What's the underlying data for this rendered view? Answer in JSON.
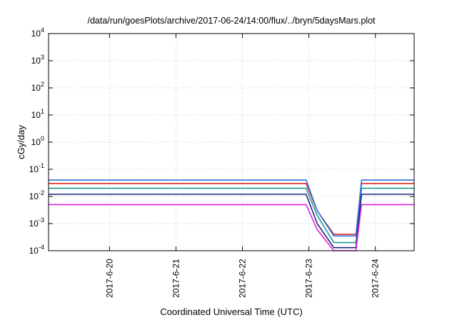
{
  "chart_data": {
    "type": "line",
    "title": "/data/run/goesPlots/archive/2017-06-24/14:00/flux/../bryn/5daysMars.plot",
    "xlabel": "Coordinated Universal Time (UTC)",
    "ylabel": "cGy/day",
    "y_scale": "log",
    "ylim": [
      0.0001,
      10000
    ],
    "xlim": [
      "2017-06-19T02:00",
      "2017-06-24T14:00"
    ],
    "grid": true,
    "legend": "none",
    "y_ticks": [
      {
        "value": 0.0001,
        "base": "10",
        "exp": "-4"
      },
      {
        "value": 0.001,
        "base": "10",
        "exp": "-3"
      },
      {
        "value": 0.01,
        "base": "10",
        "exp": "-2"
      },
      {
        "value": 0.1,
        "base": "10",
        "exp": "-1"
      },
      {
        "value": 1,
        "base": "10",
        "exp": "0"
      },
      {
        "value": 10,
        "base": "10",
        "exp": "1"
      },
      {
        "value": 100,
        "base": "10",
        "exp": "2"
      },
      {
        "value": 1000,
        "base": "10",
        "exp": "3"
      },
      {
        "value": 10000,
        "base": "10",
        "exp": "4"
      }
    ],
    "x_ticks": [
      {
        "value": "2017-06-20T00:00",
        "label": "2017-6-20"
      },
      {
        "value": "2017-06-21T00:00",
        "label": "2017-6-21"
      },
      {
        "value": "2017-06-22T00:00",
        "label": "2017-6-22"
      },
      {
        "value": "2017-06-23T00:00",
        "label": "2017-6-23"
      },
      {
        "value": "2017-06-24T00:00",
        "label": "2017-6-24"
      }
    ],
    "series": [
      {
        "color": "#e8262a",
        "x": [
          "2017-06-19T02:00",
          "2017-06-19T12:00",
          "2017-06-20T00:00",
          "2017-06-20T12:00",
          "2017-06-21T00:00",
          "2017-06-21T12:00",
          "2017-06-22T00:00",
          "2017-06-22T12:00",
          "2017-06-22T23:00",
          "2017-06-23T03:00",
          "2017-06-23T09:00",
          "2017-06-23T12:00",
          "2017-06-23T17:00",
          "2017-06-23T19:00",
          "2017-06-24T00:00",
          "2017-06-24T14:00"
        ],
        "y": [
          0.03,
          0.03,
          0.03,
          0.03,
          0.03,
          0.03,
          0.03,
          0.03,
          0.03,
          0.003,
          0.0004,
          0.0004,
          0.0004,
          0.03,
          0.03,
          0.03
        ]
      },
      {
        "color": "#1f9b8f",
        "x": [
          "2017-06-19T02:00",
          "2017-06-19T12:00",
          "2017-06-20T00:00",
          "2017-06-20T12:00",
          "2017-06-21T00:00",
          "2017-06-21T12:00",
          "2017-06-22T00:00",
          "2017-06-22T12:00",
          "2017-06-22T23:00",
          "2017-06-23T03:00",
          "2017-06-23T09:00",
          "2017-06-23T12:00",
          "2017-06-23T17:00",
          "2017-06-23T19:00",
          "2017-06-24T00:00",
          "2017-06-24T14:00"
        ],
        "y": [
          0.02,
          0.02,
          0.02,
          0.02,
          0.02,
          0.02,
          0.02,
          0.02,
          0.02,
          0.002,
          0.0002,
          0.0002,
          0.0002,
          0.02,
          0.02,
          0.02
        ]
      },
      {
        "color": "#1a237e",
        "x": [
          "2017-06-19T02:00",
          "2017-06-19T12:00",
          "2017-06-20T00:00",
          "2017-06-20T12:00",
          "2017-06-21T00:00",
          "2017-06-21T12:00",
          "2017-06-22T00:00",
          "2017-06-22T12:00",
          "2017-06-22T23:00",
          "2017-06-23T03:00",
          "2017-06-23T09:00",
          "2017-06-23T12:00",
          "2017-06-23T17:00",
          "2017-06-23T19:00",
          "2017-06-24T00:00",
          "2017-06-24T14:00"
        ],
        "y": [
          0.012,
          0.012,
          0.012,
          0.012,
          0.012,
          0.012,
          0.012,
          0.012,
          0.012,
          0.001,
          0.00013,
          0.00013,
          0.00013,
          0.012,
          0.012,
          0.012
        ]
      },
      {
        "color": "#2f6fe0",
        "x": [
          "2017-06-19T02:00",
          "2017-06-19T12:00",
          "2017-06-20T00:00",
          "2017-06-20T12:00",
          "2017-06-21T00:00",
          "2017-06-21T12:00",
          "2017-06-22T00:00",
          "2017-06-22T12:00",
          "2017-06-22T23:00",
          "2017-06-23T03:00",
          "2017-06-23T09:00",
          "2017-06-23T12:00",
          "2017-06-23T17:00",
          "2017-06-23T19:00",
          "2017-06-24T00:00",
          "2017-06-24T14:00"
        ],
        "y": [
          0.04,
          0.04,
          0.04,
          0.04,
          0.04,
          0.04,
          0.04,
          0.04,
          0.04,
          0.003,
          0.00035,
          0.00035,
          0.00035,
          0.04,
          0.04,
          0.04
        ]
      },
      {
        "color": "#e020e0",
        "x": [
          "2017-06-19T02:00",
          "2017-06-19T12:00",
          "2017-06-20T00:00",
          "2017-06-20T12:00",
          "2017-06-21T00:00",
          "2017-06-21T12:00",
          "2017-06-22T00:00",
          "2017-06-22T12:00",
          "2017-06-22T23:00",
          "2017-06-23T03:00",
          "2017-06-23T09:00",
          "2017-06-23T12:00",
          "2017-06-23T17:00",
          "2017-06-23T19:00",
          "2017-06-24T00:00",
          "2017-06-24T14:00"
        ],
        "y": [
          0.005,
          0.005,
          0.005,
          0.005,
          0.005,
          0.005,
          0.005,
          0.005,
          0.005,
          0.0006,
          0.0001,
          0.0001,
          0.0001,
          0.005,
          0.005,
          0.005
        ]
      }
    ]
  }
}
